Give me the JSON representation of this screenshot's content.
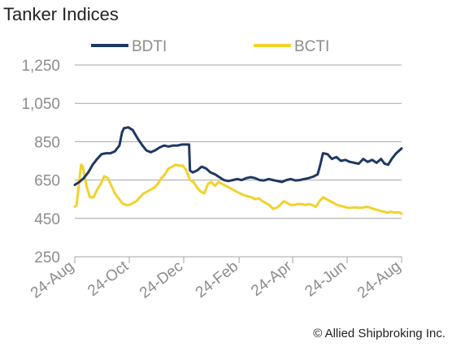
{
  "credit": "© Allied Shipbroking Inc.",
  "colors": {
    "background": "#ffffff",
    "grid": "#a6a6a6",
    "tick_text": "#8c8c8c",
    "title_text": "#222222"
  },
  "chart_data": {
    "type": "line",
    "title": "Tanker Indices",
    "xlabel": "",
    "ylabel": "",
    "ylim": [
      250,
      1250
    ],
    "yticks": [
      250,
      450,
      650,
      850,
      1050,
      1250
    ],
    "ytick_labels": [
      "250",
      "450",
      "650",
      "850",
      "1,050",
      "1,250"
    ],
    "xlim": [
      "2015-08-24",
      "2016-08-24"
    ],
    "xticks": [
      "2015-08-24",
      "2015-10-24",
      "2015-12-24",
      "2016-02-24",
      "2016-04-24",
      "2016-06-24",
      "2016-08-24"
    ],
    "xtick_labels": [
      "24-Aug",
      "24-Oct",
      "24-Dec",
      "24-Feb",
      "24-Apr",
      "24-Jun",
      "24-Aug"
    ],
    "grid": true,
    "legend_position": "top",
    "series": [
      {
        "name": "BDTI",
        "color": "#1f3864",
        "points": [
          [
            "2015-08-24",
            625
          ],
          [
            "2015-08-29",
            640
          ],
          [
            "2015-09-03",
            660
          ],
          [
            "2015-09-08",
            690
          ],
          [
            "2015-09-13",
            730
          ],
          [
            "2015-09-18",
            760
          ],
          [
            "2015-09-23",
            785
          ],
          [
            "2015-09-28",
            790
          ],
          [
            "2015-10-03",
            790
          ],
          [
            "2015-10-08",
            800
          ],
          [
            "2015-10-13",
            830
          ],
          [
            "2015-10-16",
            900
          ],
          [
            "2015-10-18",
            920
          ],
          [
            "2015-10-23",
            925
          ],
          [
            "2015-10-28",
            910
          ],
          [
            "2015-11-02",
            870
          ],
          [
            "2015-11-07",
            835
          ],
          [
            "2015-11-12",
            805
          ],
          [
            "2015-11-17",
            795
          ],
          [
            "2015-11-22",
            805
          ],
          [
            "2015-11-27",
            820
          ],
          [
            "2015-12-02",
            830
          ],
          [
            "2015-12-07",
            825
          ],
          [
            "2015-12-12",
            830
          ],
          [
            "2015-12-17",
            830
          ],
          [
            "2015-12-22",
            835
          ],
          [
            "2015-12-30",
            835
          ],
          [
            "2015-12-31",
            700
          ],
          [
            "2016-01-03",
            690
          ],
          [
            "2016-01-08",
            700
          ],
          [
            "2016-01-13",
            720
          ],
          [
            "2016-01-18",
            710
          ],
          [
            "2016-01-23",
            690
          ],
          [
            "2016-01-28",
            680
          ],
          [
            "2016-02-02",
            665
          ],
          [
            "2016-02-07",
            650
          ],
          [
            "2016-02-12",
            645
          ],
          [
            "2016-02-17",
            650
          ],
          [
            "2016-02-22",
            655
          ],
          [
            "2016-02-27",
            650
          ],
          [
            "2016-03-03",
            660
          ],
          [
            "2016-03-08",
            665
          ],
          [
            "2016-03-13",
            660
          ],
          [
            "2016-03-18",
            650
          ],
          [
            "2016-03-23",
            648
          ],
          [
            "2016-03-28",
            655
          ],
          [
            "2016-04-02",
            650
          ],
          [
            "2016-04-07",
            645
          ],
          [
            "2016-04-12",
            640
          ],
          [
            "2016-04-17",
            650
          ],
          [
            "2016-04-22",
            655
          ],
          [
            "2016-04-27",
            648
          ],
          [
            "2016-05-02",
            650
          ],
          [
            "2016-05-07",
            655
          ],
          [
            "2016-05-12",
            660
          ],
          [
            "2016-05-17",
            668
          ],
          [
            "2016-05-22",
            680
          ],
          [
            "2016-05-25",
            730
          ],
          [
            "2016-05-28",
            790
          ],
          [
            "2016-06-02",
            785
          ],
          [
            "2016-06-07",
            760
          ],
          [
            "2016-06-12",
            770
          ],
          [
            "2016-06-17",
            750
          ],
          [
            "2016-06-22",
            755
          ],
          [
            "2016-06-27",
            745
          ],
          [
            "2016-07-02",
            740
          ],
          [
            "2016-07-07",
            735
          ],
          [
            "2016-07-12",
            760
          ],
          [
            "2016-07-17",
            745
          ],
          [
            "2016-07-22",
            755
          ],
          [
            "2016-07-27",
            740
          ],
          [
            "2016-08-01",
            760
          ],
          [
            "2016-08-05",
            735
          ],
          [
            "2016-08-09",
            730
          ],
          [
            "2016-08-13",
            760
          ],
          [
            "2016-08-18",
            790
          ],
          [
            "2016-08-24",
            815
          ]
        ]
      },
      {
        "name": "BCTI",
        "color": "#f2d22c",
        "points": [
          [
            "2015-08-24",
            510
          ],
          [
            "2015-08-26",
            520
          ],
          [
            "2015-08-28",
            600
          ],
          [
            "2015-08-31",
            730
          ],
          [
            "2015-09-02",
            720
          ],
          [
            "2015-09-06",
            620
          ],
          [
            "2015-09-10",
            560
          ],
          [
            "2015-09-14",
            560
          ],
          [
            "2015-09-18",
            600
          ],
          [
            "2015-09-22",
            630
          ],
          [
            "2015-09-26",
            670
          ],
          [
            "2015-09-30",
            660
          ],
          [
            "2015-10-04",
            620
          ],
          [
            "2015-10-08",
            580
          ],
          [
            "2015-10-12",
            555
          ],
          [
            "2015-10-16",
            530
          ],
          [
            "2015-10-20",
            520
          ],
          [
            "2015-10-24",
            520
          ],
          [
            "2015-10-28",
            530
          ],
          [
            "2015-11-01",
            540
          ],
          [
            "2015-11-05",
            560
          ],
          [
            "2015-11-09",
            580
          ],
          [
            "2015-11-13",
            590
          ],
          [
            "2015-11-17",
            600
          ],
          [
            "2015-11-21",
            610
          ],
          [
            "2015-11-25",
            630
          ],
          [
            "2015-11-29",
            660
          ],
          [
            "2015-12-03",
            680
          ],
          [
            "2015-12-07",
            710
          ],
          [
            "2015-12-11",
            720
          ],
          [
            "2015-12-15",
            730
          ],
          [
            "2015-12-19",
            725
          ],
          [
            "2015-12-23",
            725
          ],
          [
            "2015-12-27",
            700
          ],
          [
            "2015-12-31",
            650
          ],
          [
            "2016-01-04",
            640
          ],
          [
            "2016-01-08",
            610
          ],
          [
            "2016-01-12",
            590
          ],
          [
            "2016-01-16",
            580
          ],
          [
            "2016-01-20",
            630
          ],
          [
            "2016-01-24",
            640
          ],
          [
            "2016-01-28",
            620
          ],
          [
            "2016-02-01",
            640
          ],
          [
            "2016-02-05",
            630
          ],
          [
            "2016-02-09",
            620
          ],
          [
            "2016-02-13",
            610
          ],
          [
            "2016-02-17",
            600
          ],
          [
            "2016-02-21",
            590
          ],
          [
            "2016-02-25",
            580
          ],
          [
            "2016-03-01",
            570
          ],
          [
            "2016-03-05",
            565
          ],
          [
            "2016-03-09",
            560
          ],
          [
            "2016-03-13",
            550
          ],
          [
            "2016-03-17",
            555
          ],
          [
            "2016-03-21",
            540
          ],
          [
            "2016-03-25",
            530
          ],
          [
            "2016-03-29",
            520
          ],
          [
            "2016-04-02",
            500
          ],
          [
            "2016-04-06",
            505
          ],
          [
            "2016-04-10",
            520
          ],
          [
            "2016-04-14",
            540
          ],
          [
            "2016-04-18",
            530
          ],
          [
            "2016-04-22",
            520
          ],
          [
            "2016-04-26",
            520
          ],
          [
            "2016-04-30",
            525
          ],
          [
            "2016-05-04",
            525
          ],
          [
            "2016-05-08",
            520
          ],
          [
            "2016-05-12",
            525
          ],
          [
            "2016-05-16",
            520
          ],
          [
            "2016-05-20",
            510
          ],
          [
            "2016-05-24",
            540
          ],
          [
            "2016-05-28",
            560
          ],
          [
            "2016-06-01",
            550
          ],
          [
            "2016-06-05",
            540
          ],
          [
            "2016-06-09",
            530
          ],
          [
            "2016-06-13",
            520
          ],
          [
            "2016-06-17",
            515
          ],
          [
            "2016-06-21",
            510
          ],
          [
            "2016-06-25",
            505
          ],
          [
            "2016-06-29",
            505
          ],
          [
            "2016-07-03",
            508
          ],
          [
            "2016-07-07",
            505
          ],
          [
            "2016-07-11",
            505
          ],
          [
            "2016-07-15",
            510
          ],
          [
            "2016-07-19",
            508
          ],
          [
            "2016-07-23",
            500
          ],
          [
            "2016-07-27",
            495
          ],
          [
            "2016-07-31",
            490
          ],
          [
            "2016-08-04",
            485
          ],
          [
            "2016-08-08",
            480
          ],
          [
            "2016-08-12",
            485
          ],
          [
            "2016-08-16",
            480
          ],
          [
            "2016-08-20",
            482
          ],
          [
            "2016-08-24",
            475
          ]
        ]
      }
    ]
  }
}
